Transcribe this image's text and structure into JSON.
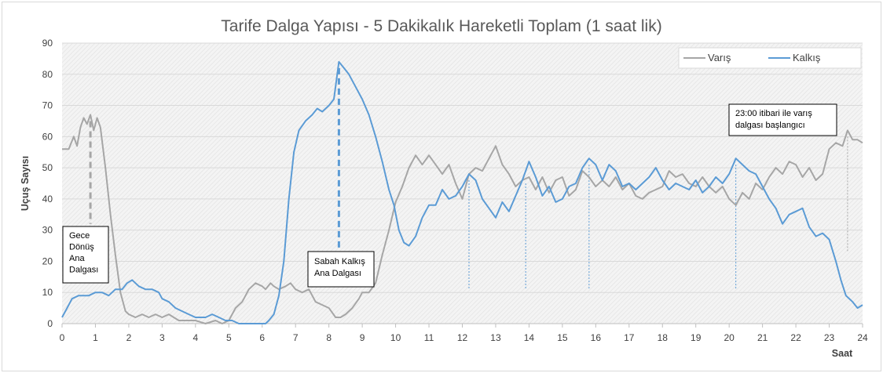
{
  "chart_data": {
    "type": "line",
    "title": "Tarife Dalga Yapısı - 5 Dakikalık Hareketli Toplam (1 saat lik)",
    "ylabel": "Uçuş Sayısı",
    "xlabel": "Saat",
    "xlim": [
      0,
      24
    ],
    "ylim": [
      0,
      90
    ],
    "x_ticks": [
      "0",
      "1",
      "2",
      "3",
      "4",
      "5",
      "6",
      "7",
      "8",
      "9",
      "10",
      "11",
      "12",
      "13",
      "14",
      "15",
      "16",
      "17",
      "18",
      "19",
      "20",
      "21",
      "22",
      "23",
      "24"
    ],
    "y_ticks": [
      "0",
      "10",
      "20",
      "30",
      "40",
      "50",
      "60",
      "70",
      "80",
      "90"
    ],
    "grid": true,
    "legend_position": "top-right",
    "series": [
      {
        "name": "Varış",
        "color": "#a6a6a6",
        "points": [
          [
            0,
            56
          ],
          [
            0.2,
            56
          ],
          [
            0.35,
            60
          ],
          [
            0.45,
            57
          ],
          [
            0.55,
            63
          ],
          [
            0.65,
            66
          ],
          [
            0.75,
            64
          ],
          [
            0.85,
            67
          ],
          [
            0.95,
            62
          ],
          [
            1.05,
            66
          ],
          [
            1.15,
            63
          ],
          [
            1.3,
            50
          ],
          [
            1.45,
            35
          ],
          [
            1.6,
            22
          ],
          [
            1.75,
            10
          ],
          [
            1.9,
            4
          ],
          [
            2.0,
            3
          ],
          [
            2.2,
            2
          ],
          [
            2.4,
            3
          ],
          [
            2.6,
            2
          ],
          [
            2.8,
            3
          ],
          [
            3.0,
            2
          ],
          [
            3.2,
            3
          ],
          [
            3.5,
            1
          ],
          [
            3.8,
            1
          ],
          [
            4.0,
            1
          ],
          [
            4.3,
            0
          ],
          [
            4.6,
            1
          ],
          [
            4.8,
            0
          ],
          [
            5.0,
            1
          ],
          [
            5.2,
            5
          ],
          [
            5.4,
            7
          ],
          [
            5.6,
            11
          ],
          [
            5.8,
            13
          ],
          [
            6.0,
            12
          ],
          [
            6.1,
            11
          ],
          [
            6.25,
            13
          ],
          [
            6.35,
            12
          ],
          [
            6.5,
            11
          ],
          [
            6.7,
            12
          ],
          [
            6.85,
            13
          ],
          [
            7.0,
            11
          ],
          [
            7.2,
            10
          ],
          [
            7.4,
            11
          ],
          [
            7.6,
            7
          ],
          [
            7.8,
            6
          ],
          [
            8.0,
            5
          ],
          [
            8.2,
            2
          ],
          [
            8.35,
            2
          ],
          [
            8.5,
            3
          ],
          [
            8.7,
            5
          ],
          [
            8.9,
            8
          ],
          [
            9.0,
            10
          ],
          [
            9.2,
            10
          ],
          [
            9.4,
            13
          ],
          [
            9.6,
            22
          ],
          [
            9.8,
            30
          ],
          [
            10.0,
            39
          ],
          [
            10.2,
            44
          ],
          [
            10.4,
            50
          ],
          [
            10.6,
            54
          ],
          [
            10.8,
            51
          ],
          [
            11.0,
            54
          ],
          [
            11.2,
            51
          ],
          [
            11.4,
            48
          ],
          [
            11.6,
            51
          ],
          [
            11.8,
            45
          ],
          [
            12.0,
            40
          ],
          [
            12.2,
            48
          ],
          [
            12.4,
            50
          ],
          [
            12.6,
            49
          ],
          [
            12.8,
            53
          ],
          [
            13.0,
            57
          ],
          [
            13.2,
            51
          ],
          [
            13.4,
            48
          ],
          [
            13.6,
            44
          ],
          [
            13.8,
            46
          ],
          [
            14.0,
            47
          ],
          [
            14.2,
            43
          ],
          [
            14.4,
            47
          ],
          [
            14.6,
            42
          ],
          [
            14.8,
            46
          ],
          [
            15.0,
            47
          ],
          [
            15.2,
            41
          ],
          [
            15.4,
            43
          ],
          [
            15.6,
            49
          ],
          [
            15.8,
            47
          ],
          [
            16.0,
            44
          ],
          [
            16.2,
            46
          ],
          [
            16.4,
            44
          ],
          [
            16.6,
            47
          ],
          [
            16.8,
            43
          ],
          [
            17.0,
            45
          ],
          [
            17.2,
            41
          ],
          [
            17.4,
            40
          ],
          [
            17.6,
            42
          ],
          [
            17.8,
            43
          ],
          [
            18.0,
            44
          ],
          [
            18.2,
            49
          ],
          [
            18.4,
            47
          ],
          [
            18.6,
            48
          ],
          [
            18.8,
            45
          ],
          [
            19.0,
            44
          ],
          [
            19.2,
            47
          ],
          [
            19.4,
            44
          ],
          [
            19.6,
            42
          ],
          [
            19.8,
            44
          ],
          [
            20.0,
            40
          ],
          [
            20.2,
            38
          ],
          [
            20.4,
            42
          ],
          [
            20.6,
            40
          ],
          [
            20.8,
            45
          ],
          [
            21.0,
            43
          ],
          [
            21.2,
            47
          ],
          [
            21.4,
            50
          ],
          [
            21.6,
            48
          ],
          [
            21.8,
            52
          ],
          [
            22.0,
            51
          ],
          [
            22.2,
            47
          ],
          [
            22.4,
            50
          ],
          [
            22.6,
            46
          ],
          [
            22.8,
            48
          ],
          [
            23.0,
            56
          ],
          [
            23.2,
            58
          ],
          [
            23.4,
            57
          ],
          [
            23.55,
            62
          ],
          [
            23.7,
            59
          ],
          [
            23.85,
            59
          ],
          [
            24.0,
            58
          ]
        ]
      },
      {
        "name": "Kalkış",
        "color": "#5b9bd5",
        "points": [
          [
            0,
            2
          ],
          [
            0.15,
            5
          ],
          [
            0.3,
            8
          ],
          [
            0.5,
            9
          ],
          [
            0.8,
            9
          ],
          [
            1.0,
            10
          ],
          [
            1.2,
            10
          ],
          [
            1.4,
            9
          ],
          [
            1.6,
            11
          ],
          [
            1.8,
            11
          ],
          [
            1.95,
            13
          ],
          [
            2.1,
            14
          ],
          [
            2.3,
            12
          ],
          [
            2.5,
            11
          ],
          [
            2.7,
            11
          ],
          [
            2.9,
            10
          ],
          [
            3.0,
            8
          ],
          [
            3.2,
            7
          ],
          [
            3.4,
            5
          ],
          [
            3.6,
            4
          ],
          [
            3.8,
            3
          ],
          [
            4.0,
            2
          ],
          [
            4.3,
            2
          ],
          [
            4.5,
            3
          ],
          [
            4.7,
            2
          ],
          [
            4.9,
            1
          ],
          [
            5.1,
            1
          ],
          [
            5.3,
            0
          ],
          [
            5.6,
            0
          ],
          [
            5.9,
            0
          ],
          [
            6.1,
            0
          ],
          [
            6.2,
            1
          ],
          [
            6.35,
            3
          ],
          [
            6.5,
            9
          ],
          [
            6.65,
            20
          ],
          [
            6.8,
            40
          ],
          [
            6.95,
            55
          ],
          [
            7.1,
            62
          ],
          [
            7.3,
            65
          ],
          [
            7.5,
            67
          ],
          [
            7.65,
            69
          ],
          [
            7.8,
            68
          ],
          [
            8.0,
            70
          ],
          [
            8.15,
            72
          ],
          [
            8.3,
            84
          ],
          [
            8.45,
            82
          ],
          [
            8.6,
            80
          ],
          [
            8.8,
            76
          ],
          [
            9.0,
            72
          ],
          [
            9.2,
            67
          ],
          [
            9.4,
            60
          ],
          [
            9.6,
            52
          ],
          [
            9.8,
            43
          ],
          [
            9.95,
            38
          ],
          [
            10.1,
            30
          ],
          [
            10.25,
            26
          ],
          [
            10.4,
            25
          ],
          [
            10.6,
            28
          ],
          [
            10.8,
            34
          ],
          [
            11.0,
            38
          ],
          [
            11.2,
            38
          ],
          [
            11.4,
            43
          ],
          [
            11.6,
            40
          ],
          [
            11.8,
            41
          ],
          [
            12.0,
            44
          ],
          [
            12.2,
            48
          ],
          [
            12.4,
            46
          ],
          [
            12.6,
            40
          ],
          [
            12.8,
            37
          ],
          [
            13.0,
            34
          ],
          [
            13.2,
            39
          ],
          [
            13.4,
            36
          ],
          [
            13.6,
            41
          ],
          [
            13.8,
            46
          ],
          [
            14.0,
            52
          ],
          [
            14.2,
            47
          ],
          [
            14.4,
            41
          ],
          [
            14.6,
            44
          ],
          [
            14.8,
            39
          ],
          [
            15.0,
            40
          ],
          [
            15.2,
            44
          ],
          [
            15.4,
            45
          ],
          [
            15.6,
            50
          ],
          [
            15.8,
            53
          ],
          [
            16.0,
            51
          ],
          [
            16.2,
            46
          ],
          [
            16.4,
            51
          ],
          [
            16.6,
            49
          ],
          [
            16.8,
            44
          ],
          [
            17.0,
            45
          ],
          [
            17.2,
            43
          ],
          [
            17.4,
            45
          ],
          [
            17.6,
            47
          ],
          [
            17.8,
            50
          ],
          [
            18.0,
            46
          ],
          [
            18.2,
            43
          ],
          [
            18.4,
            45
          ],
          [
            18.6,
            44
          ],
          [
            18.8,
            43
          ],
          [
            19.0,
            46
          ],
          [
            19.2,
            42
          ],
          [
            19.4,
            44
          ],
          [
            19.6,
            47
          ],
          [
            19.8,
            45
          ],
          [
            20.0,
            48
          ],
          [
            20.2,
            53
          ],
          [
            20.4,
            51
          ],
          [
            20.6,
            49
          ],
          [
            20.8,
            48
          ],
          [
            21.0,
            44
          ],
          [
            21.2,
            40
          ],
          [
            21.4,
            37
          ],
          [
            21.6,
            32
          ],
          [
            21.8,
            35
          ],
          [
            22.0,
            36
          ],
          [
            22.2,
            37
          ],
          [
            22.4,
            31
          ],
          [
            22.6,
            28
          ],
          [
            22.8,
            29
          ],
          [
            23.0,
            27
          ],
          [
            23.2,
            20
          ],
          [
            23.35,
            14
          ],
          [
            23.5,
            9
          ],
          [
            23.7,
            7
          ],
          [
            23.85,
            5
          ],
          [
            24.0,
            6
          ]
        ]
      }
    ],
    "annotations": [
      {
        "lines": [
          "Gece",
          "Dönüş",
          "Ana",
          "Dalgası"
        ]
      },
      {
        "lines": [
          "Sabah Kalkış",
          "Ana Dalgası"
        ]
      },
      {
        "lines": [
          "23:00 itibari ile varış",
          "dalgası başlangıcı"
        ]
      }
    ]
  }
}
